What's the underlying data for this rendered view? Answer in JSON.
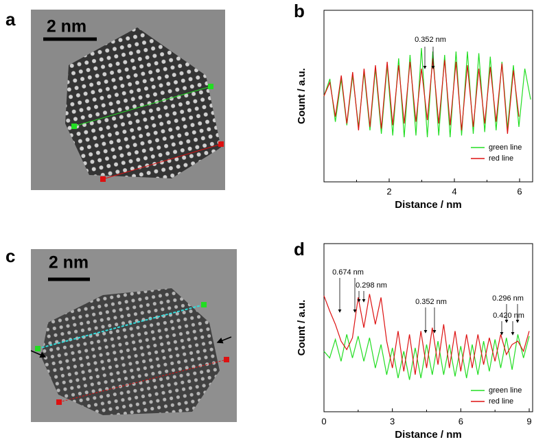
{
  "images": [
    {
      "label": "a",
      "scale_bar": "2 nm"
    },
    {
      "label": "c",
      "scale_bar": "2 nm"
    }
  ],
  "chart_data": [
    {
      "type": "line",
      "label": "b",
      "x_label": "Distance / nm",
      "y_label": "Count / a.u.",
      "xlim": [
        0,
        6.4
      ],
      "xticks": [
        2,
        4,
        6
      ],
      "minor_xticks": [
        1,
        3,
        5
      ],
      "ylim": [
        0,
        10
      ],
      "legend": "lower right",
      "annotations": [
        "0.352 nm"
      ],
      "x": [
        0,
        0.18,
        0.35,
        0.53,
        0.7,
        0.88,
        1.06,
        1.23,
        1.41,
        1.58,
        1.76,
        1.94,
        2.11,
        2.29,
        2.46,
        2.64,
        2.82,
        2.99,
        3.17,
        3.34,
        3.52,
        3.7,
        3.87,
        4.05,
        4.22,
        4.4,
        4.58,
        4.75,
        4.93,
        5.1,
        5.28,
        5.46,
        5.63,
        5.81,
        5.98,
        6.16,
        6.34
      ],
      "series": [
        {
          "name": "green line",
          "color": "#22dd22",
          "values": [
            5.0,
            6.0,
            3.5,
            6.0,
            3.3,
            6.2,
            3.2,
            6.4,
            3.0,
            6.6,
            2.8,
            6.8,
            2.7,
            7.2,
            2.6,
            7.4,
            2.7,
            7.8,
            2.6,
            7.6,
            2.7,
            7.4,
            2.6,
            7.6,
            2.7,
            7.6,
            2.8,
            7.5,
            2.9,
            7.3,
            3.0,
            7.0,
            3.1,
            6.8,
            3.2,
            6.6,
            4.8
          ]
        },
        {
          "name": "red line",
          "color": "#dd1111",
          "values": [
            5.0,
            5.8,
            3.8,
            6.2,
            3.4,
            6.4,
            3.0,
            6.6,
            3.2,
            6.8,
            3.1,
            7.0,
            3.3,
            6.8,
            3.4,
            7.0,
            3.5,
            6.6,
            3.6,
            7.2,
            3.4,
            7.1,
            3.3,
            7.0,
            3.0,
            6.8,
            3.2,
            6.6,
            3.4,
            6.7,
            3.5,
            6.9,
            2.8,
            6.5,
            3.8,
            null,
            null
          ]
        }
      ]
    },
    {
      "type": "line",
      "label": "d",
      "x_label": "Distance / nm",
      "y_label": "Count / a.u.",
      "xlim": [
        0,
        9.15
      ],
      "xticks": [
        0,
        3,
        6,
        9
      ],
      "minor_xticks": [
        1.5,
        4.5,
        7.5
      ],
      "ylim": [
        0,
        10
      ],
      "legend": "lower right",
      "annotations": [
        "0.674 nm",
        "0.298 nm",
        "0.352 nm",
        "0.296 nm",
        "0.420 nm"
      ],
      "x": [
        0,
        0.25,
        0.5,
        0.75,
        1,
        1.25,
        1.5,
        1.75,
        2,
        2.25,
        2.5,
        2.75,
        3,
        3.25,
        3.5,
        3.75,
        4,
        4.25,
        4.5,
        4.75,
        5,
        5.25,
        5.5,
        5.75,
        6,
        6.25,
        6.5,
        6.75,
        7,
        7.25,
        7.5,
        7.75,
        8,
        8.25,
        8.5,
        8.75,
        9
      ],
      "series": [
        {
          "name": "green line",
          "color": "#22dd22",
          "values": [
            3.6,
            3.2,
            4.3,
            3.0,
            4.6,
            3.2,
            4.5,
            3.0,
            4.4,
            2.6,
            4.0,
            2.2,
            3.8,
            2.0,
            3.6,
            1.9,
            3.8,
            2.0,
            4.0,
            2.2,
            4.2,
            2.2,
            4.0,
            2.1,
            3.9,
            2.0,
            4.0,
            2.2,
            4.2,
            2.4,
            4.3,
            2.6,
            4.4,
            2.5,
            4.6,
            3.2,
            4.5
          ]
        },
        {
          "name": "red line",
          "color": "#dd1111",
          "values": [
            6.9,
            6.0,
            5.2,
            4.2,
            3.7,
            4.4,
            6.8,
            5.0,
            7.0,
            5.2,
            6.8,
            4.2,
            2.6,
            4.8,
            2.4,
            4.6,
            2.2,
            4.8,
            2.6,
            5.0,
            2.8,
            5.2,
            2.6,
            4.8,
            2.4,
            4.6,
            2.6,
            4.6,
            2.8,
            4.4,
            3.0,
            4.6,
            3.4,
            4.0,
            4.2,
            3.6,
            4.8
          ]
        }
      ]
    }
  ]
}
